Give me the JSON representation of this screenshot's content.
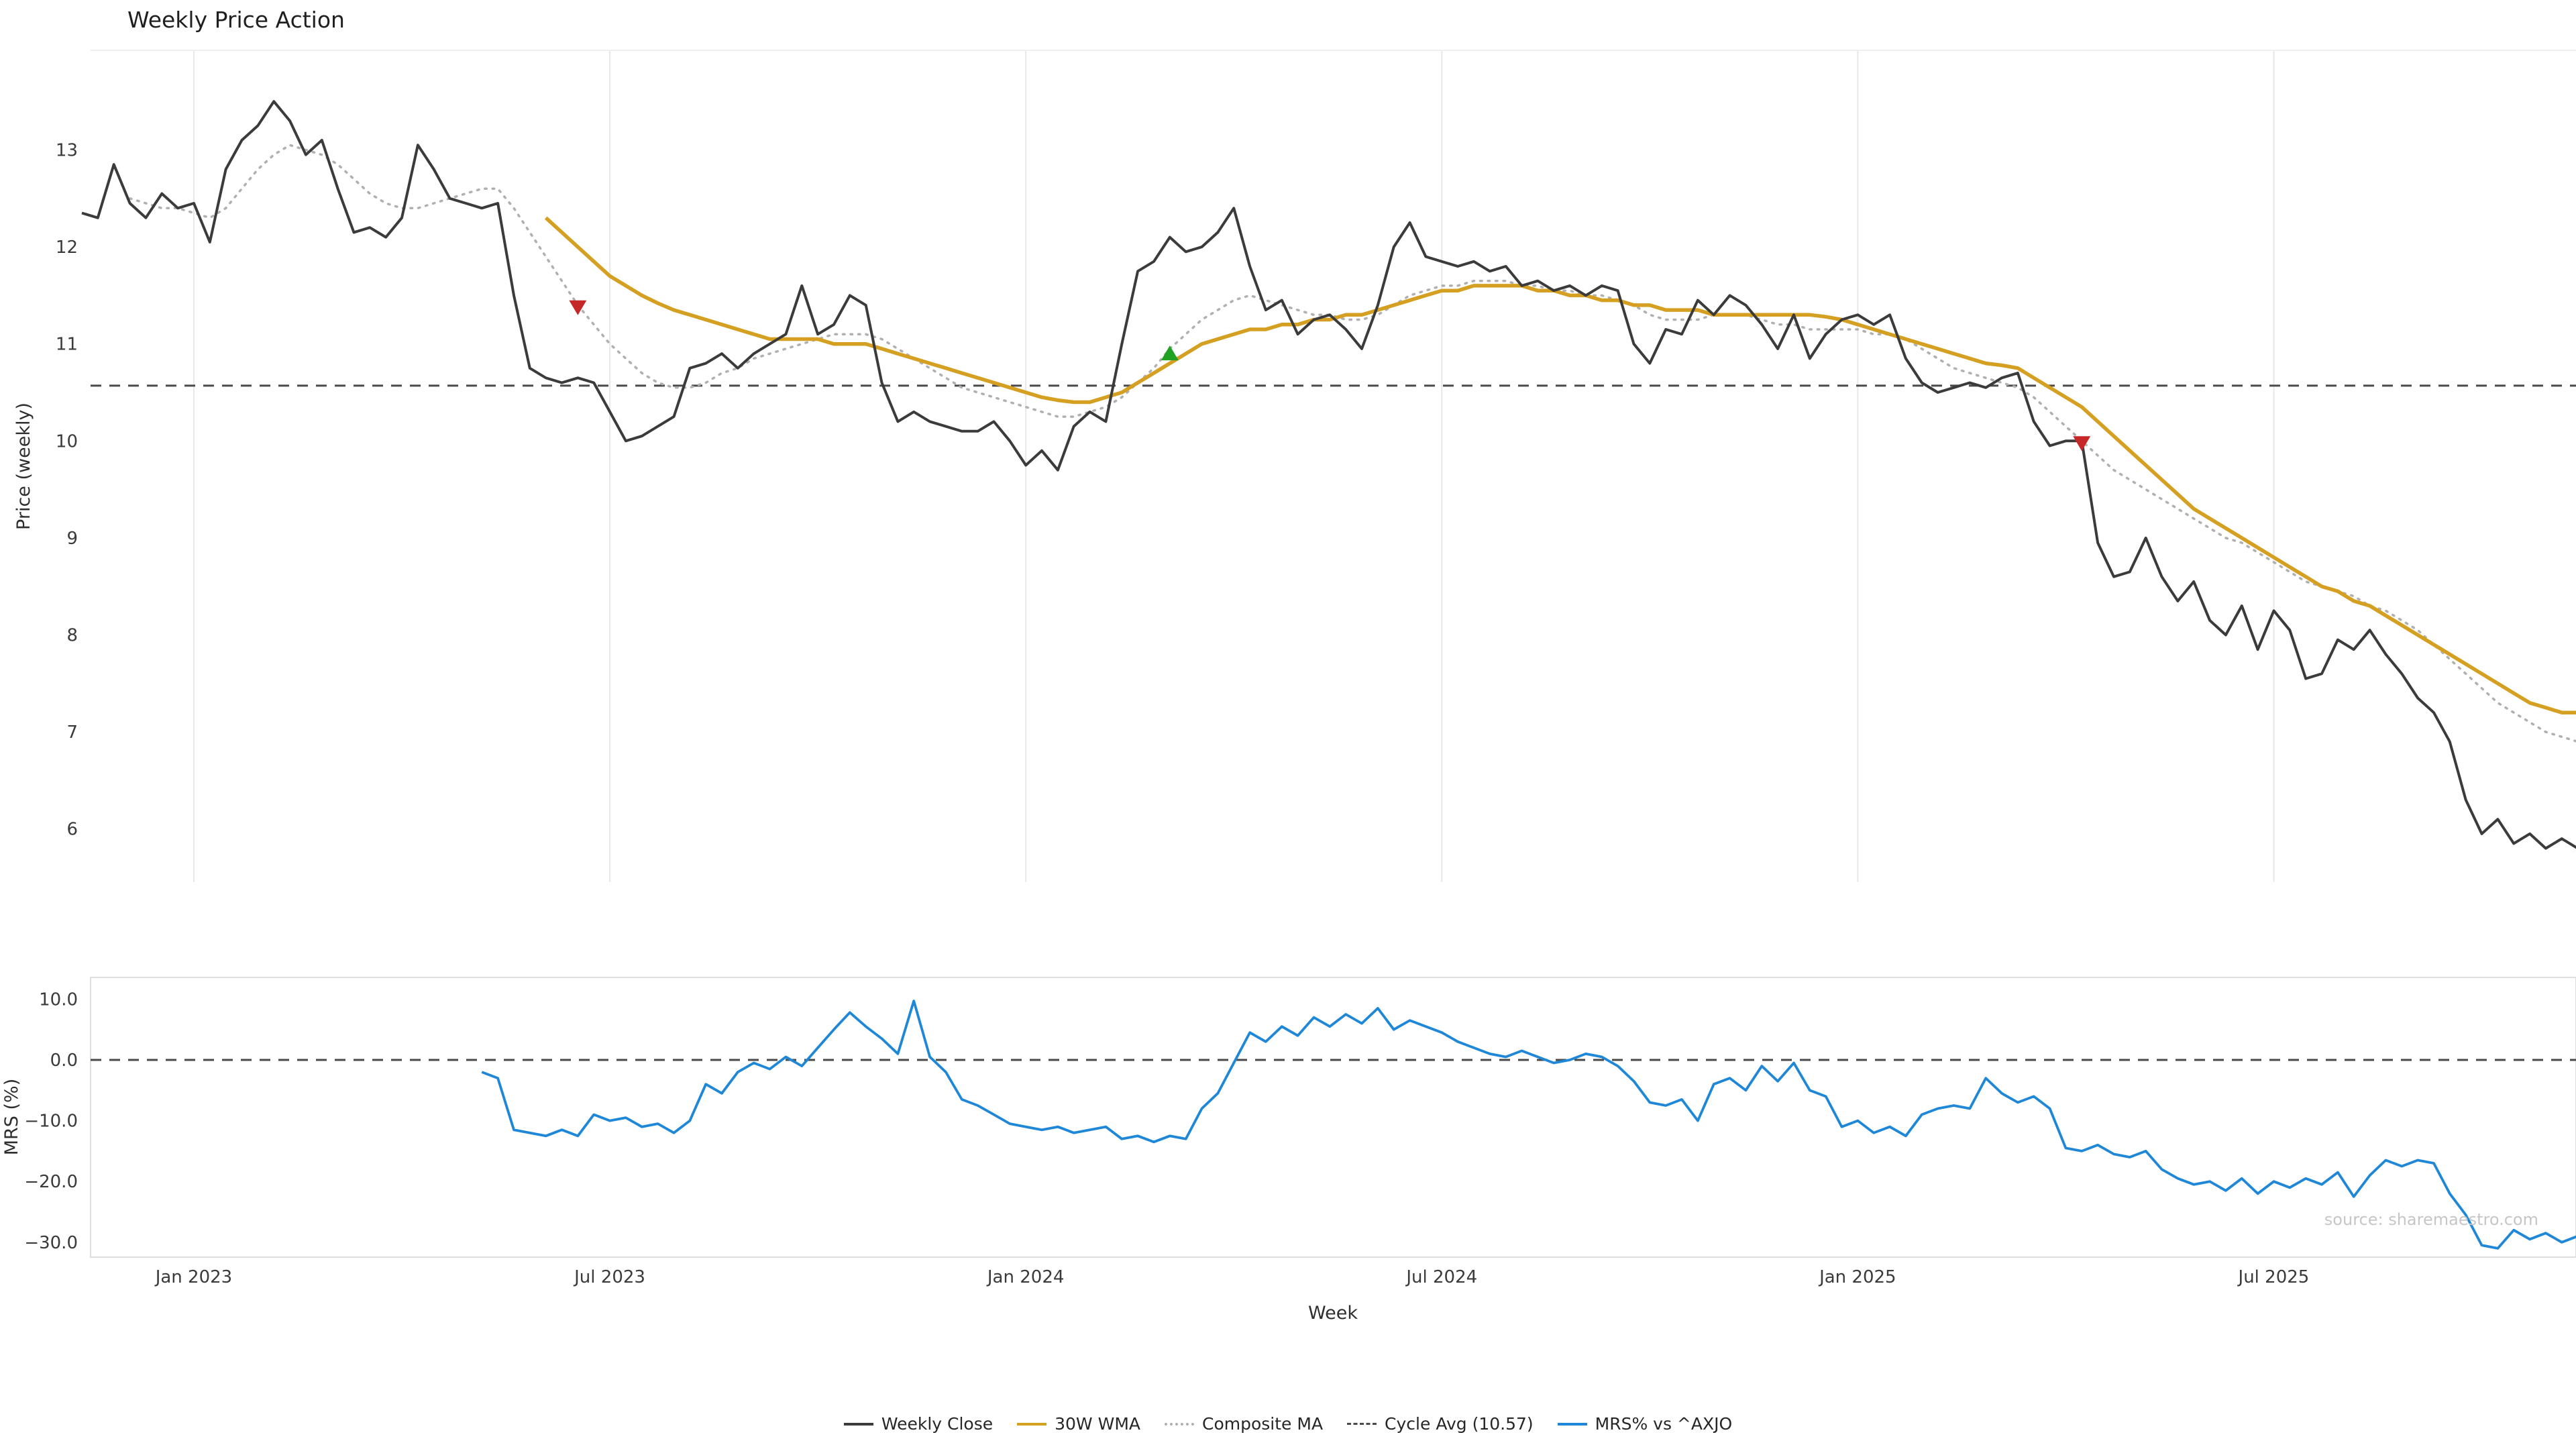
{
  "title": "Weekly Price Action",
  "source": "source: sharemaestro.com",
  "legend": [
    {
      "label": "Weekly Close",
      "color": "#3b3b3b",
      "style": "solid"
    },
    {
      "label": "30W WMA",
      "color": "#d5a021",
      "style": "solid"
    },
    {
      "label": "Composite MA",
      "color": "#b0b0b0",
      "style": "dotted"
    },
    {
      "label": "Cycle Avg (10.57)",
      "color": "#4a4a4a",
      "style": "dashed"
    },
    {
      "label": "MRS% vs ^AXJO",
      "color": "#1e87d8",
      "style": "solid"
    }
  ],
  "chart_data": [
    {
      "type": "line",
      "title": "Weekly Price Action",
      "xlabel": "Week",
      "ylabel": "Price (weekly)",
      "x_unit": "week_index",
      "x_tick_labels": [
        "Jan 2023",
        "Jul 2023",
        "Jan 2024",
        "Jul 2024",
        "Jan 2025",
        "Jul 2025"
      ],
      "x_tick_week_indices": [
        7,
        33,
        59,
        85,
        111,
        137
      ],
      "yticks": [
        13,
        12,
        11,
        10,
        9,
        8,
        7,
        6
      ],
      "ylim": [
        5.45,
        14.0
      ],
      "grid": "vertical-only",
      "cycle_avg": 10.57,
      "markers": [
        {
          "type": "sell",
          "shape": "triangle-down",
          "color": "#c62828",
          "week_index": 31,
          "value": 11.38
        },
        {
          "type": "buy",
          "shape": "triangle-up",
          "color": "#21a121",
          "week_index": 68,
          "value": 10.9
        },
        {
          "type": "sell",
          "shape": "triangle-down",
          "color": "#c62828",
          "week_index": 125,
          "value": 9.98
        }
      ],
      "series": [
        {
          "name": "Cycle Avg (10.57)",
          "color": "#4a4a4a",
          "style": "dashed",
          "width": 3,
          "constant": 10.57
        },
        {
          "name": "Composite MA",
          "color": "#b0b0b0",
          "style": "dotted",
          "width": 3.5,
          "start_index": 3,
          "values": [
            12.5,
            12.45,
            12.4,
            12.4,
            12.35,
            12.3,
            12.4,
            12.6,
            12.8,
            12.95,
            13.05,
            13.0,
            12.95,
            12.85,
            12.7,
            12.55,
            12.45,
            12.4,
            12.4,
            12.45,
            12.5,
            12.55,
            12.6,
            12.6,
            12.4,
            12.15,
            11.9,
            11.65,
            11.4,
            11.2,
            11.0,
            10.85,
            10.7,
            10.6,
            10.55,
            10.55,
            10.6,
            10.7,
            10.75,
            10.85,
            10.9,
            10.95,
            11.0,
            11.05,
            11.1,
            11.1,
            11.1,
            11.05,
            10.95,
            10.85,
            10.75,
            10.65,
            10.55,
            10.5,
            10.45,
            10.4,
            10.35,
            10.3,
            10.25,
            10.25,
            10.3,
            10.35,
            10.45,
            10.6,
            10.75,
            10.95,
            11.1,
            11.25,
            11.35,
            11.45,
            11.5,
            11.45,
            11.4,
            11.35,
            11.3,
            11.3,
            11.25,
            11.25,
            11.3,
            11.4,
            11.5,
            11.55,
            11.6,
            11.6,
            11.65,
            11.65,
            11.65,
            11.6,
            11.6,
            11.55,
            11.55,
            11.5,
            11.5,
            11.45,
            11.4,
            11.3,
            11.25,
            11.25,
            11.25,
            11.3,
            11.3,
            11.3,
            11.25,
            11.2,
            11.2,
            11.15,
            11.15,
            11.15,
            11.15,
            11.1,
            11.1,
            11.05,
            10.95,
            10.85,
            10.75,
            10.7,
            10.65,
            10.6,
            10.55,
            10.45,
            10.3,
            10.15,
            10.0,
            9.85,
            9.7,
            9.6,
            9.5,
            9.4,
            9.3,
            9.2,
            9.1,
            9.0,
            8.95,
            8.85,
            8.75,
            8.65,
            8.55,
            8.5,
            8.45,
            8.4,
            8.3,
            8.25,
            8.15,
            8.05,
            7.9,
            7.75,
            7.6,
            7.45,
            7.3,
            7.2,
            7.1,
            7.0,
            6.95,
            6.9
          ]
        },
        {
          "name": "30W WMA",
          "color": "#d5a021",
          "style": "solid",
          "width": 5.5,
          "start_index": 29,
          "values": [
            12.3,
            12.15,
            12.0,
            11.85,
            11.7,
            11.6,
            11.5,
            11.42,
            11.35,
            11.3,
            11.25,
            11.2,
            11.15,
            11.1,
            11.05,
            11.05,
            11.05,
            11.05,
            11.0,
            11.0,
            11.0,
            10.95,
            10.9,
            10.85,
            10.8,
            10.75,
            10.7,
            10.65,
            10.6,
            10.55,
            10.5,
            10.45,
            10.42,
            10.4,
            10.4,
            10.45,
            10.5,
            10.6,
            10.7,
            10.8,
            10.9,
            11.0,
            11.05,
            11.1,
            11.15,
            11.15,
            11.2,
            11.2,
            11.25,
            11.25,
            11.3,
            11.3,
            11.35,
            11.4,
            11.45,
            11.5,
            11.55,
            11.55,
            11.6,
            11.6,
            11.6,
            11.6,
            11.55,
            11.55,
            11.5,
            11.5,
            11.45,
            11.45,
            11.4,
            11.4,
            11.35,
            11.35,
            11.35,
            11.3,
            11.3,
            11.3,
            11.3,
            11.3,
            11.3,
            11.3,
            11.28,
            11.25,
            11.2,
            11.15,
            11.1,
            11.05,
            11.0,
            10.95,
            10.9,
            10.85,
            10.8,
            10.78,
            10.75,
            10.65,
            10.55,
            10.45,
            10.35,
            10.2,
            10.05,
            9.9,
            9.75,
            9.6,
            9.45,
            9.3,
            9.2,
            9.1,
            9.0,
            8.9,
            8.8,
            8.7,
            8.6,
            8.5,
            8.45,
            8.35,
            8.3,
            8.2,
            8.1,
            8.0,
            7.9,
            7.8,
            7.7,
            7.6,
            7.5,
            7.4,
            7.3,
            7.25,
            7.2,
            7.2
          ]
        },
        {
          "name": "Weekly Close",
          "color": "#3b3b3b",
          "style": "solid",
          "width": 4,
          "start_index": 0,
          "values": [
            12.35,
            12.3,
            12.85,
            12.45,
            12.3,
            12.55,
            12.4,
            12.45,
            12.05,
            12.8,
            13.1,
            13.25,
            13.5,
            13.3,
            12.95,
            13.1,
            12.6,
            12.15,
            12.2,
            12.1,
            12.3,
            13.05,
            12.8,
            12.5,
            12.45,
            12.4,
            12.45,
            11.5,
            10.75,
            10.65,
            10.6,
            10.65,
            10.6,
            10.3,
            10.0,
            10.05,
            10.15,
            10.25,
            10.75,
            10.8,
            10.9,
            10.75,
            10.9,
            11.0,
            11.1,
            11.6,
            11.1,
            11.2,
            11.5,
            11.4,
            10.6,
            10.2,
            10.3,
            10.2,
            10.15,
            10.1,
            10.1,
            10.2,
            10.0,
            9.75,
            9.9,
            9.7,
            10.15,
            10.3,
            10.2,
            11.0,
            11.75,
            11.85,
            12.1,
            11.95,
            12.0,
            12.15,
            12.4,
            11.8,
            11.35,
            11.45,
            11.1,
            11.25,
            11.3,
            11.15,
            10.95,
            11.4,
            12.0,
            12.25,
            11.9,
            11.85,
            11.8,
            11.85,
            11.75,
            11.8,
            11.6,
            11.65,
            11.55,
            11.6,
            11.5,
            11.6,
            11.55,
            11.0,
            10.8,
            11.15,
            11.1,
            11.45,
            11.3,
            11.5,
            11.4,
            11.2,
            10.95,
            11.3,
            10.85,
            11.1,
            11.25,
            11.3,
            11.2,
            11.3,
            10.85,
            10.6,
            10.5,
            10.55,
            10.6,
            10.55,
            10.65,
            10.7,
            10.2,
            9.95,
            10.0,
            10.0,
            8.95,
            8.6,
            8.65,
            9.0,
            8.6,
            8.35,
            8.55,
            8.15,
            8.0,
            8.3,
            7.85,
            8.25,
            8.05,
            7.55,
            7.6,
            7.95,
            7.85,
            8.05,
            7.8,
            7.6,
            7.35,
            7.2,
            6.9,
            6.3,
            5.95,
            6.1,
            5.85,
            5.95,
            5.8,
            5.9,
            5.8
          ]
        }
      ]
    },
    {
      "type": "line",
      "xlabel": "Week",
      "ylabel": "MRS (%)",
      "yticks": [
        10,
        0,
        -10,
        -20,
        -30
      ],
      "ytick_labels": [
        "10.0",
        "0.0",
        "−10.0",
        "−20.0",
        "−30.0"
      ],
      "ylim": [
        -33.5,
        13.5
      ],
      "zero_line": 0,
      "series": [
        {
          "name": "MRS% vs ^AXJO",
          "color": "#1e87d8",
          "style": "solid",
          "width": 3.8,
          "start_index": 25,
          "values": [
            -2,
            -3,
            -11.5,
            -12,
            -12.5,
            -11.5,
            -12.5,
            -9,
            -10,
            -9.5,
            -11,
            -10.5,
            -12,
            -10,
            -4,
            -5.5,
            -2,
            -0.5,
            -1.5,
            0.5,
            -1,
            2,
            5,
            7.8,
            5.5,
            3.5,
            1,
            9.7,
            0.5,
            -2,
            -6.5,
            -7.5,
            -9,
            -10.5,
            -11,
            -11.5,
            -11,
            -12,
            -11.5,
            -11,
            -13,
            -12.5,
            -13.5,
            -12.5,
            -13,
            -8,
            -5.5,
            -0.5,
            4.5,
            3,
            5.5,
            4,
            7,
            5.5,
            7.5,
            6,
            8.5,
            5,
            6.5,
            5.5,
            4.5,
            3,
            2,
            1,
            0.5,
            1.5,
            0.5,
            -0.5,
            0,
            1,
            0.5,
            -1,
            -3.5,
            -7,
            -7.5,
            -6.5,
            -10,
            -4,
            -3,
            -5,
            -1,
            -3.5,
            -0.5,
            -5,
            -6,
            -11,
            -10,
            -12,
            -11,
            -12.5,
            -9,
            -8,
            -7.5,
            -8,
            -3,
            -5.5,
            -7,
            -6,
            -8,
            -14.5,
            -15,
            -14,
            -15.5,
            -16,
            -15,
            -18,
            -19.5,
            -20.5,
            -20,
            -21.5,
            -19.5,
            -22,
            -20,
            -21,
            -19.5,
            -20.5,
            -18.5,
            -22.5,
            -19,
            -16.5,
            -17.5,
            -16.5,
            -17,
            -22,
            -25.5,
            -30.5,
            -31,
            -28,
            -29.5,
            -28.5,
            -30,
            -29
          ]
        }
      ]
    }
  ]
}
